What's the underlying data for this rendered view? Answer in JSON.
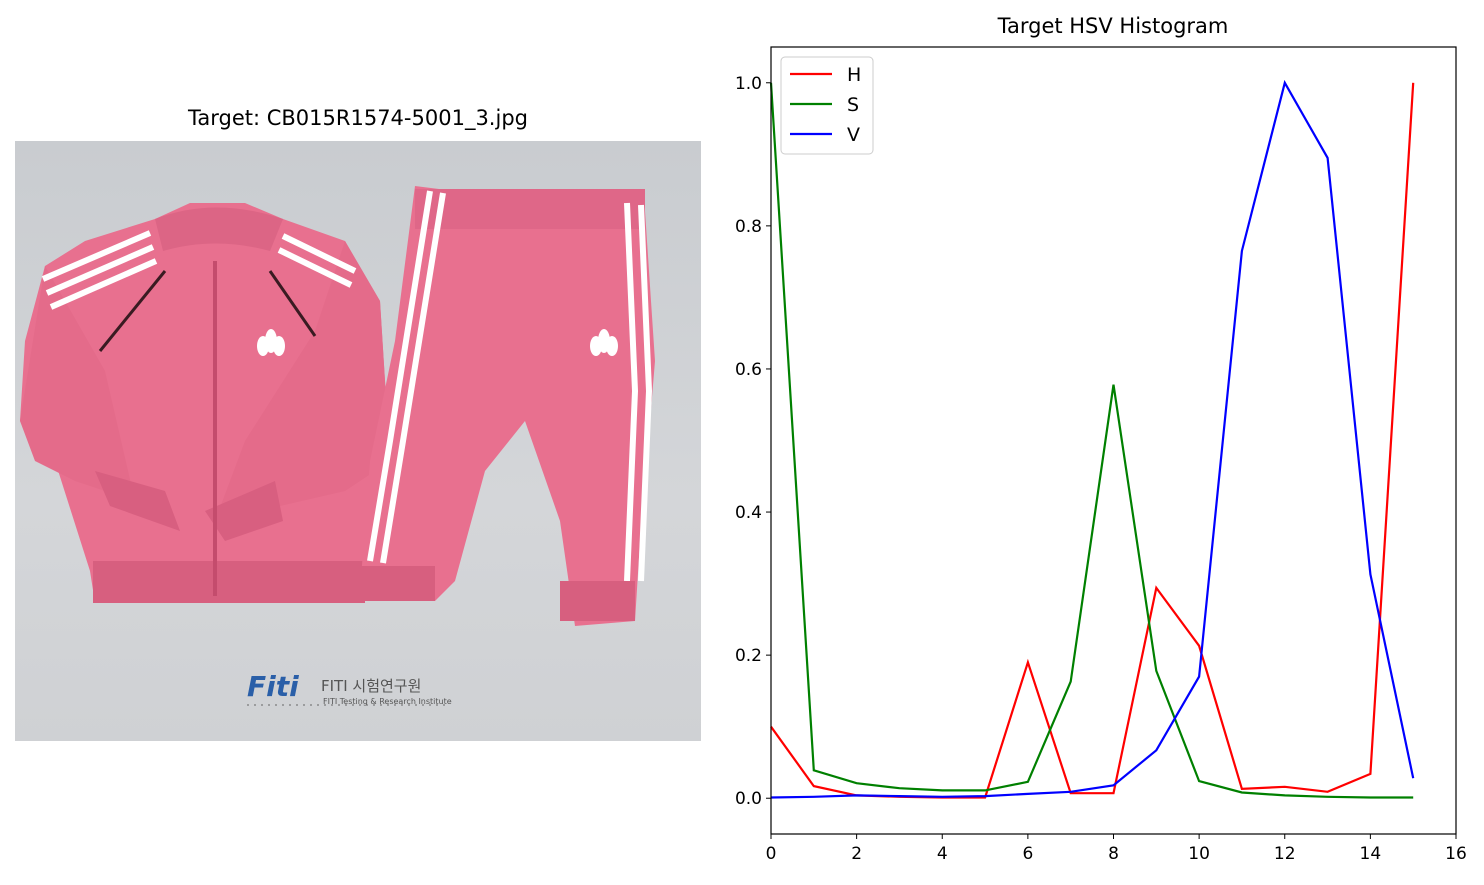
{
  "image_panel": {
    "title": "Target: CB015R1574-5001_3.jpg",
    "watermark_main": "FITI 시험연구원",
    "watermark_sub": "FITI Testing & Research Institute",
    "logo_text": "Fiti",
    "brand_text": "adidas"
  },
  "chart_data": {
    "type": "line",
    "title": "Target HSV Histogram",
    "xlabel": "",
    "ylabel": "",
    "xlim": [
      0,
      16
    ],
    "ylim": [
      -0.05,
      1.05
    ],
    "xticks": [
      0,
      2,
      4,
      6,
      8,
      10,
      12,
      14,
      16
    ],
    "yticks": [
      0.0,
      0.2,
      0.4,
      0.6,
      0.8,
      1.0
    ],
    "ytick_labels": [
      "0.0",
      "0.2",
      "0.4",
      "0.6",
      "0.8",
      "1.0"
    ],
    "x": [
      0,
      1,
      2,
      3,
      4,
      5,
      6,
      7,
      8,
      9,
      10,
      11,
      12,
      13,
      14,
      15
    ],
    "legend_position": "upper-left",
    "grid": false,
    "series": [
      {
        "name": "H",
        "color": "#ff0000",
        "values": [
          0.1,
          0.017,
          0.004,
          0.002,
          0.001,
          0.001,
          0.19,
          0.007,
          0.007,
          0.294,
          0.213,
          0.013,
          0.016,
          0.009,
          0.034,
          1.0
        ]
      },
      {
        "name": "S",
        "color": "#008000",
        "values": [
          1.0,
          0.039,
          0.021,
          0.014,
          0.011,
          0.011,
          0.023,
          0.163,
          0.578,
          0.178,
          0.024,
          0.008,
          0.004,
          0.002,
          0.001,
          0.001
        ]
      },
      {
        "name": "V",
        "color": "#0000ff",
        "values": [
          0.001,
          0.002,
          0.004,
          0.003,
          0.002,
          0.003,
          0.006,
          0.009,
          0.018,
          0.067,
          0.17,
          0.765,
          1.0,
          0.895,
          0.313,
          0.028
        ]
      }
    ]
  }
}
